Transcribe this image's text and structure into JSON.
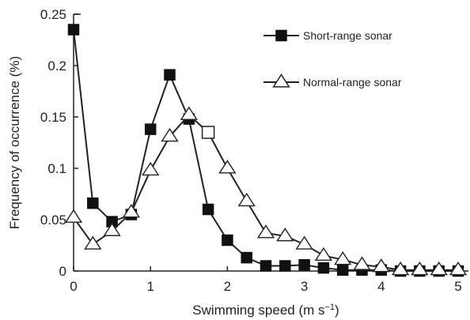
{
  "chart_data": {
    "type": "line",
    "xlabel": "Swimming speed (m s",
    "xlabel_sup": "−1",
    "xlabel_suffix": ")",
    "ylabel": "Frequency of occurrence (%)",
    "xlim": [
      0,
      5.2
    ],
    "ylim": [
      0,
      0.25
    ],
    "x_ticks": [
      0,
      1,
      2,
      3,
      4,
      5
    ],
    "x_tick_labels": [
      "0",
      "1",
      "2",
      "3",
      "4",
      "5"
    ],
    "y_ticks": [
      0,
      0.05,
      0.1,
      0.15,
      0.2,
      0.25
    ],
    "y_tick_labels": [
      "0",
      "0.05",
      "0.1",
      "0.15",
      "0.2",
      "0.25"
    ],
    "grid": false,
    "legend_position": "top-right",
    "series": [
      {
        "name": "Short-range sonar",
        "marker": "square",
        "marker_fill": "#111111",
        "line_color": "#222222",
        "x": [
          0,
          0.25,
          0.5,
          0.75,
          1.0,
          1.25,
          1.5,
          1.75,
          2.0,
          2.25,
          2.5,
          2.75,
          3.0,
          3.25,
          3.5,
          3.75,
          4.0,
          4.25,
          4.5,
          4.75,
          5.0
        ],
        "y": [
          0.235,
          0.066,
          0.048,
          0.055,
          0.138,
          0.191,
          0.148,
          0.06,
          0.03,
          0.013,
          0.005,
          0.005,
          0.006,
          0.003,
          0.001,
          0.001,
          0.001,
          0.0,
          0.0,
          0.0,
          0.0
        ]
      },
      {
        "name": "Normal-range sonar",
        "marker": "triangle",
        "marker_fill": "#ffffff",
        "line_color": "#222222",
        "x": [
          0,
          0.25,
          0.5,
          0.75,
          1.0,
          1.25,
          1.5,
          1.75,
          2.0,
          2.25,
          2.5,
          2.75,
          3.0,
          3.25,
          3.5,
          3.75,
          4.0,
          4.25,
          4.5,
          4.75,
          5.0
        ],
        "y": [
          0.052,
          0.026,
          0.039,
          0.057,
          0.098,
          0.131,
          0.152,
          0.135,
          0.1,
          0.068,
          0.037,
          0.034,
          0.026,
          0.015,
          0.011,
          0.006,
          0.004,
          0.001,
          0.001,
          0.001,
          0.001
        ]
      }
    ]
  }
}
